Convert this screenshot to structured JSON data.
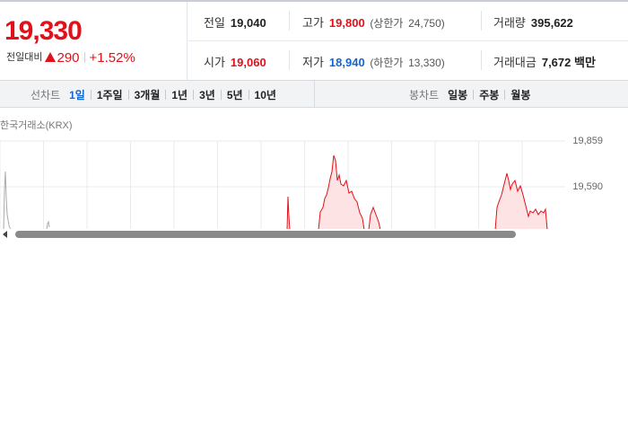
{
  "quote": {
    "current_price": "19,330",
    "change_label": "전일대비",
    "change_amount": "290",
    "change_percent": "+1.52%",
    "direction": "up-triangle-icon"
  },
  "info": {
    "prev_close": {
      "label": "전일",
      "value": "19,040"
    },
    "high": {
      "label": "고가",
      "value": "19,800",
      "sub_label": "(상한가",
      "sub_value": "24,750)"
    },
    "volume": {
      "label": "거래량",
      "value": "395,622"
    },
    "open": {
      "label": "시가",
      "value": "19,060"
    },
    "low": {
      "label": "저가",
      "value": "18,940",
      "sub_label": "(하한가",
      "sub_value": "13,330)"
    },
    "trade_value": {
      "label": "거래대금",
      "value": "7,672",
      "unit": "백만"
    }
  },
  "line_tabs": {
    "label": "선차트",
    "items": [
      "1일",
      "1주일",
      "3개월",
      "1년",
      "3년",
      "5년",
      "10년"
    ],
    "active": 0
  },
  "candle_tabs": {
    "label": "봉차트",
    "items": [
      "일봉",
      "주봉",
      "월봉"
    ]
  },
  "chart": {
    "exchange_label": "한국거래소(KRX)",
    "y_ticks": [
      "19,859",
      "19,590"
    ],
    "line_color": "#e0111a",
    "fill_color": "#fde3e3",
    "grid_color": "#e9ebee"
  },
  "colors": {
    "up": "#e0111a",
    "down": "#1466d2"
  }
}
